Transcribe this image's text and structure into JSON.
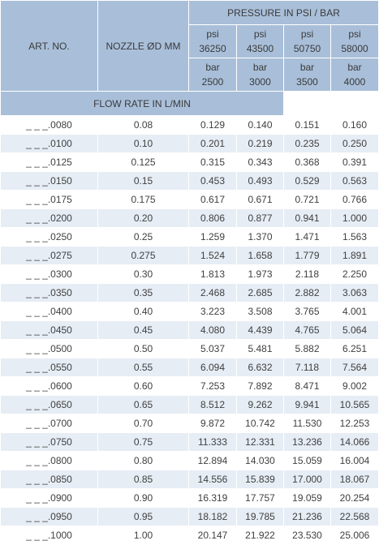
{
  "header": {
    "art_no": "ART. NO.",
    "nozzle": "NOZZLE ØD MM",
    "pressure": "PRESSURE IN PSI / BAR",
    "flow_rate": "FLOW RATE IN L/MIN",
    "psi_label": "psi",
    "bar_label": "bar",
    "psi_values": [
      "36250",
      "43500",
      "50750",
      "58000"
    ],
    "bar_values": [
      "2500",
      "3000",
      "3500",
      "4000"
    ]
  },
  "rows": [
    {
      "art": "_ _ _.0080",
      "nozzle": "0.08",
      "f1": "0.129",
      "f2": "0.140",
      "f3": "0.151",
      "f4": "0.160"
    },
    {
      "art": "_ _ _.0100",
      "nozzle": "0.10",
      "f1": "0.201",
      "f2": "0.219",
      "f3": "0.235",
      "f4": "0.250"
    },
    {
      "art": "_ _ _.0125",
      "nozzle": "0.125",
      "f1": "0.315",
      "f2": "0.343",
      "f3": "0.368",
      "f4": "0.391"
    },
    {
      "art": "_ _ _.0150",
      "nozzle": "0.15",
      "f1": "0.453",
      "f2": "0.493",
      "f3": "0.529",
      "f4": "0.563"
    },
    {
      "art": "_ _ _.0175",
      "nozzle": "0.175",
      "f1": "0.617",
      "f2": "0.671",
      "f3": "0.721",
      "f4": "0.766"
    },
    {
      "art": "_ _ _.0200",
      "nozzle": "0.20",
      "f1": "0.806",
      "f2": "0.877",
      "f3": "0.941",
      "f4": "1.000"
    },
    {
      "art": "_ _ _.0250",
      "nozzle": "0.25",
      "f1": "1.259",
      "f2": "1.370",
      "f3": "1.471",
      "f4": "1.563"
    },
    {
      "art": "_ _ _.0275",
      "nozzle": "0.275",
      "f1": "1.524",
      "f2": "1.658",
      "f3": "1.779",
      "f4": "1.891"
    },
    {
      "art": "_ _ _.0300",
      "nozzle": "0.30",
      "f1": "1.813",
      "f2": "1.973",
      "f3": "2.118",
      "f4": "2.250"
    },
    {
      "art": "_ _ _.0350",
      "nozzle": "0.35",
      "f1": "2.468",
      "f2": "2.685",
      "f3": "2.882",
      "f4": "3.063"
    },
    {
      "art": "_ _ _.0400",
      "nozzle": "0.40",
      "f1": "3.223",
      "f2": "3.508",
      "f3": "3.765",
      "f4": "4.001"
    },
    {
      "art": "_ _ _.0450",
      "nozzle": "0.45",
      "f1": "4.080",
      "f2": "4.439",
      "f3": "4.765",
      "f4": "5.064"
    },
    {
      "art": "_ _ _.0500",
      "nozzle": "0.50",
      "f1": "5.037",
      "f2": "5.481",
      "f3": "5.882",
      "f4": "6.251"
    },
    {
      "art": "_ _ _.0550",
      "nozzle": "0.55",
      "f1": "6.094",
      "f2": "6.632",
      "f3": "7.118",
      "f4": "7.564"
    },
    {
      "art": "_ _ _.0600",
      "nozzle": "0.60",
      "f1": "7.253",
      "f2": "7.892",
      "f3": "8.471",
      "f4": "9.002"
    },
    {
      "art": "_ _ _.0650",
      "nozzle": "0.65",
      "f1": "8.512",
      "f2": "9.262",
      "f3": "9.941",
      "f4": "10.565"
    },
    {
      "art": "_ _ _.0700",
      "nozzle": "0.70",
      "f1": "9.872",
      "f2": "10.742",
      "f3": "11.530",
      "f4": "12.253"
    },
    {
      "art": "_ _ _.0750",
      "nozzle": "0.75",
      "f1": "11.333",
      "f2": "12.331",
      "f3": "13.236",
      "f4": "14.066"
    },
    {
      "art": "_ _ _.0800",
      "nozzle": "0.80",
      "f1": "12.894",
      "f2": "14.030",
      "f3": "15.059",
      "f4": "16.004"
    },
    {
      "art": "_ _ _.0850",
      "nozzle": "0.85",
      "f1": "14.556",
      "f2": "15.839",
      "f3": "17.000",
      "f4": "18.067"
    },
    {
      "art": "_ _ _.0900",
      "nozzle": "0.90",
      "f1": "16.319",
      "f2": "17.757",
      "f3": "19.059",
      "f4": "20.254"
    },
    {
      "art": "_ _ _.0950",
      "nozzle": "0.95",
      "f1": "18.182",
      "f2": "19.785",
      "f3": "21.236",
      "f4": "22.568"
    },
    {
      "art": "_ _ _.1000",
      "nozzle": "1.00",
      "f1": "20.147",
      "f2": "21.922",
      "f3": "23.530",
      "f4": "25.006"
    }
  ]
}
